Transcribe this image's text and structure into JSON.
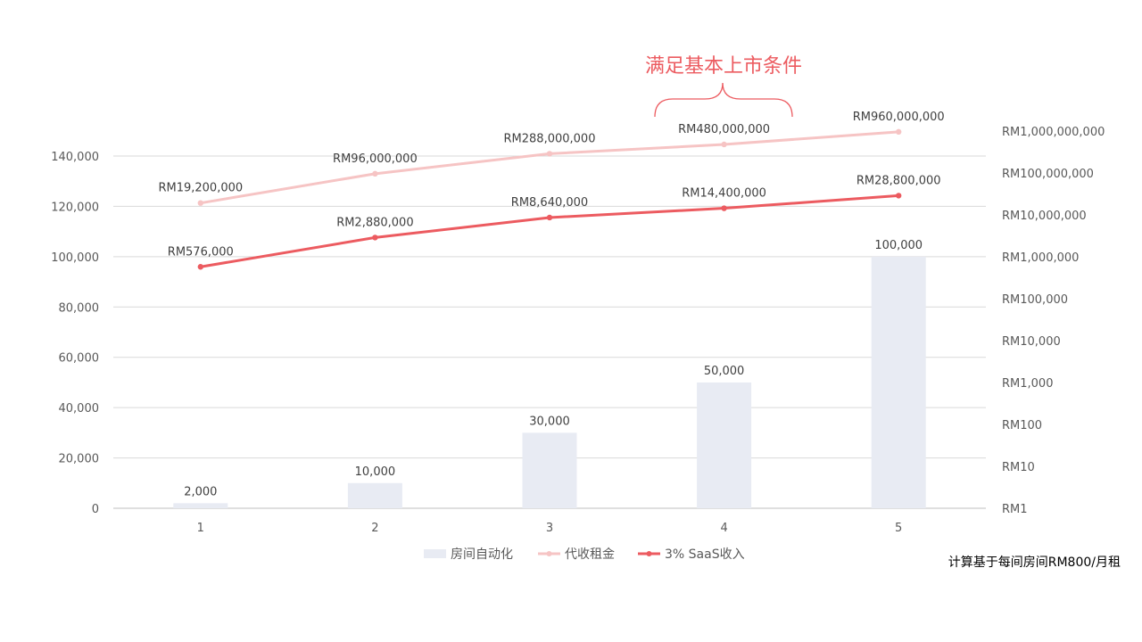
{
  "chart_data": {
    "type": "bar",
    "categories": [
      "1",
      "2",
      "3",
      "4",
      "5"
    ],
    "series": [
      {
        "name": "房间自动化",
        "chart_type": "bar",
        "axis": "left",
        "values": [
          2000,
          10000,
          30000,
          50000,
          100000
        ],
        "labels": [
          "2,000",
          "10,000",
          "30,000",
          "50,000",
          "100,000"
        ],
        "color": "#E8EBF3"
      },
      {
        "name": "代收租金",
        "chart_type": "line",
        "axis": "right",
        "values": [
          19200000,
          96000000,
          288000000,
          480000000,
          960000000
        ],
        "labels": [
          "RM19,200,000",
          "RM96,000,000",
          "RM288,000,000",
          "RM480,000,000",
          "RM960,000,000"
        ],
        "color": "#F6C4C4"
      },
      {
        "name": "3% SaaS收入",
        "chart_type": "line",
        "axis": "right",
        "values": [
          576000,
          2880000,
          8640000,
          14400000,
          28800000
        ],
        "labels": [
          "RM576,000",
          "RM2,880,000",
          "RM8,640,000",
          "RM14,400,000",
          "RM28,800,000"
        ],
        "color": "#EC5B60"
      }
    ],
    "y_left": {
      "ylim": [
        0,
        140000
      ],
      "ticks": [
        0,
        20000,
        40000,
        60000,
        80000,
        100000,
        120000,
        140000
      ],
      "tick_labels": [
        "0",
        "20,000",
        "40,000",
        "60,000",
        "80,000",
        "100,000",
        "120,000",
        "140,000"
      ]
    },
    "y_right": {
      "scale": "log",
      "ylim": [
        1,
        1000000000
      ],
      "ticks": [
        1,
        10,
        100,
        1000,
        10000,
        100000,
        1000000,
        10000000,
        100000000,
        1000000000
      ],
      "tick_labels": [
        "RM1",
        "RM10",
        "RM100",
        "RM1,000",
        "RM10,000",
        "RM100,000",
        "RM1,000,000",
        "RM10,000,000",
        "RM100,000,000",
        "RM1,000,000,000"
      ]
    },
    "grid": true,
    "legend": "bottom",
    "annotation": {
      "text": "满足基本上市条件",
      "color": "#EC5B60"
    },
    "title": "",
    "xlabel": "",
    "ylabel": ""
  },
  "footnote": "计算基于每间房间RM800/月租"
}
